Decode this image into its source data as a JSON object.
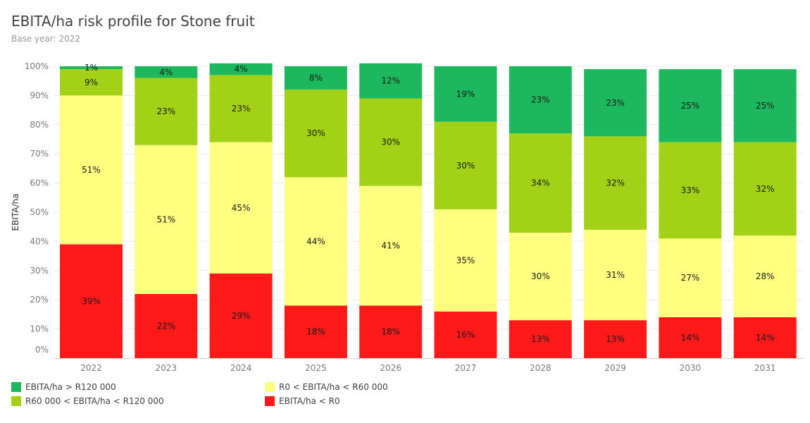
{
  "title": "EBITA/ha risk profile for Stone fruit",
  "subtitle": "Base year: 2022",
  "chart_data": {
    "type": "bar",
    "stacked": true,
    "ylabel": "EBITA/ha",
    "xlabel": "",
    "ylim": [
      0,
      1
    ],
    "y_ticks": [
      "0%",
      "10%",
      "20%",
      "30%",
      "40%",
      "50%",
      "60%",
      "70%",
      "80%",
      "90%",
      "100%"
    ],
    "categories": [
      "2022",
      "2023",
      "2024",
      "2025",
      "2026",
      "2027",
      "2028",
      "2029",
      "2030",
      "2031"
    ],
    "series": [
      {
        "name": "EBITA/ha < R0",
        "color": "#ff1a1a",
        "values": [
          0.39,
          0.22,
          0.29,
          0.18,
          0.18,
          0.16,
          0.13,
          0.13,
          0.14,
          0.14
        ],
        "labels": [
          "39%",
          "22%",
          "29%",
          "18%",
          "18%",
          "16%",
          "13%",
          "13%",
          "14%",
          "14%"
        ]
      },
      {
        "name": "R0 < EBITA/ha < R60 000",
        "color": "#ffff80",
        "values": [
          0.51,
          0.51,
          0.45,
          0.44,
          0.41,
          0.35,
          0.3,
          0.31,
          0.27,
          0.28
        ],
        "labels": [
          "51%",
          "51%",
          "45%",
          "44%",
          "41%",
          "35%",
          "30%",
          "31%",
          "27%",
          "28%"
        ]
      },
      {
        "name": "R60 000 < EBITA/ha < R120 000",
        "color": "#a3d117",
        "values": [
          0.09,
          0.23,
          0.23,
          0.3,
          0.3,
          0.3,
          0.34,
          0.32,
          0.33,
          0.32
        ],
        "labels": [
          "9%",
          "23%",
          "23%",
          "30%",
          "30%",
          "30%",
          "34%",
          "32%",
          "33%",
          "32%"
        ]
      },
      {
        "name": "EBITA/ha > R120 000",
        "color": "#1db85e",
        "values": [
          0.01,
          0.04,
          0.04,
          0.08,
          0.12,
          0.19,
          0.23,
          0.23,
          0.25,
          0.25
        ],
        "labels": [
          "1%",
          "4%",
          "4%",
          "8%",
          "12%",
          "19%",
          "23%",
          "23%",
          "25%",
          "25%"
        ]
      }
    ],
    "legend": [
      {
        "label": "EBITA/ha > R120 000",
        "color": "#1db85e"
      },
      {
        "label": "R0 < EBITA/ha < R60 000",
        "color": "#ffff80"
      },
      {
        "label": "R60 000 < EBITA/ha < R120 000",
        "color": "#a3d117"
      },
      {
        "label": "EBITA/ha < R0",
        "color": "#ff1a1a"
      }
    ],
    "legend_placement": "bottom",
    "grid": true
  }
}
